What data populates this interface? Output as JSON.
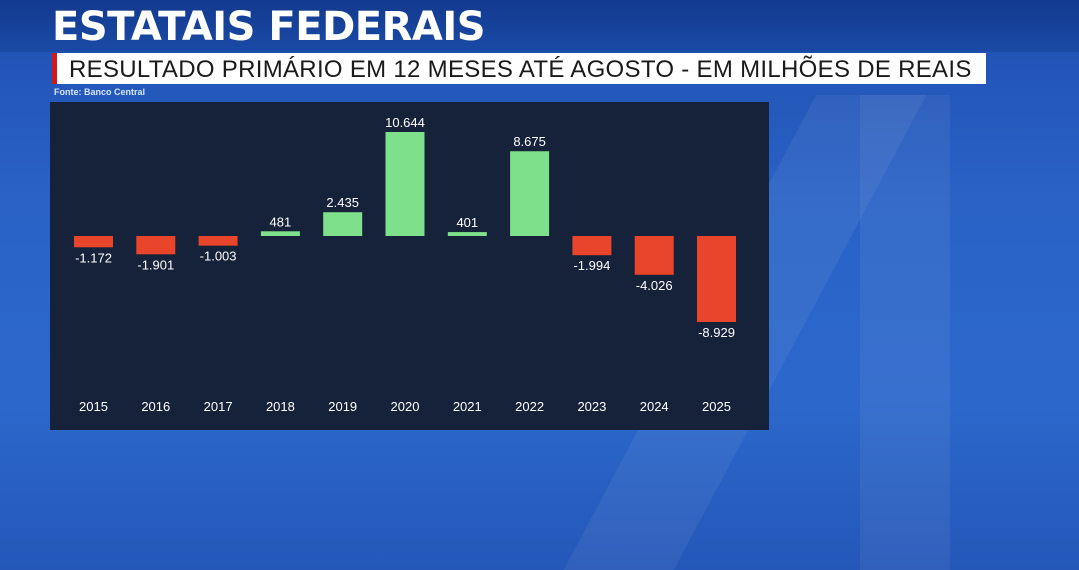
{
  "headline": "ESTATAIS FEDERAIS",
  "subtitle": "RESULTADO PRIMÁRIO EM 12 MESES ATÉ AGOSTO - EM MILHÕES DE REAIS",
  "source": "Fonte: Banco Central",
  "colors": {
    "positive": "#7ee08a",
    "negative": "#e8452a",
    "panel": "#16213a",
    "accent": "#d11a1a"
  },
  "chart_data": {
    "type": "bar",
    "categories": [
      "2015",
      "2016",
      "2017",
      "2018",
      "2019",
      "2020",
      "2021",
      "2022",
      "2023",
      "2024",
      "2025"
    ],
    "values": [
      -1172,
      -1901,
      -1003,
      481,
      2435,
      10644,
      401,
      8675,
      -1994,
      -4026,
      -8929
    ],
    "value_labels": [
      "-1.172",
      "-1.901",
      "-1.003",
      "481",
      "2.435",
      "10.644",
      "401",
      "8.675",
      "-1.994",
      "-4.026",
      "-8.929"
    ],
    "title": "",
    "xlabel": "",
    "ylabel": "",
    "ylim": [
      -8929,
      10644
    ],
    "grid": false,
    "legend": "none"
  }
}
